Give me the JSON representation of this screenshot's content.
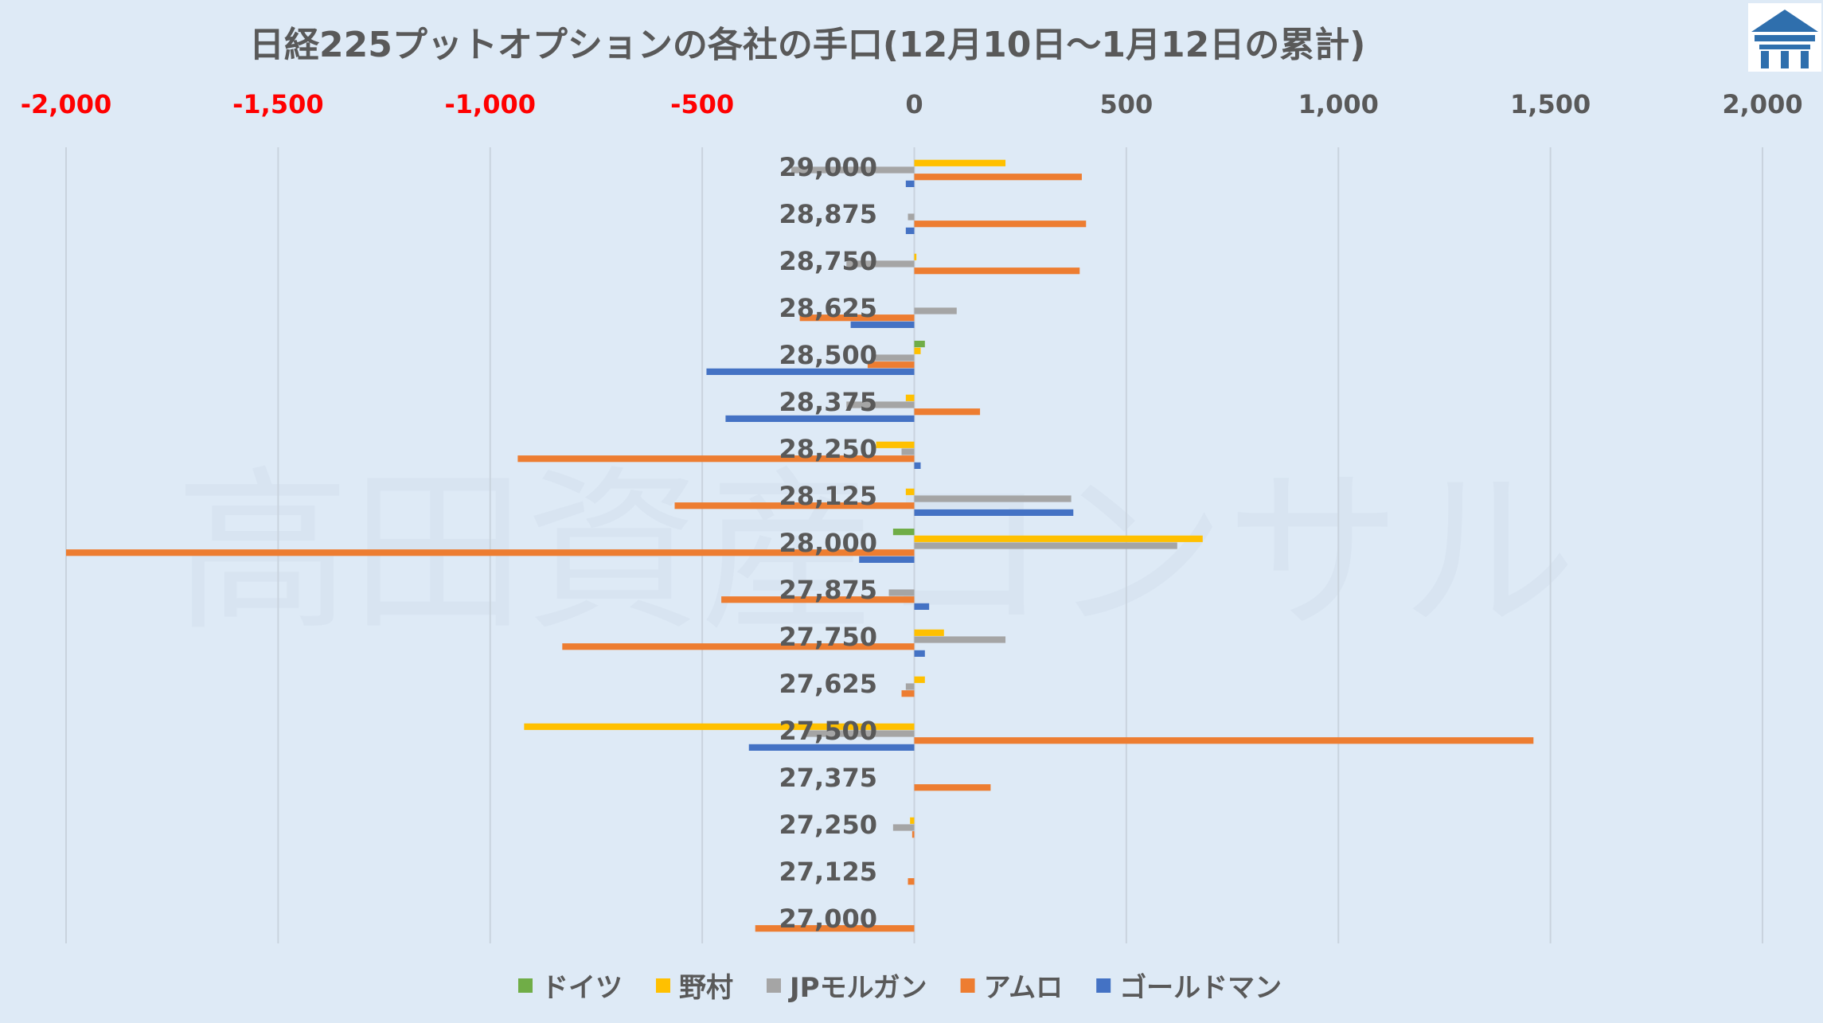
{
  "chart_data": {
    "type": "bar",
    "orientation": "horizontal",
    "title": "日経225プットオプションの各社の手口(12月10日～1月12日の累計)",
    "watermark": "高田資産コンサル",
    "logo": "building-logo",
    "xlim": [
      -2000,
      2000
    ],
    "xticks": [
      -2000,
      -1500,
      -1000,
      -500,
      0,
      500,
      1000,
      1500,
      2000
    ],
    "xtick_labels": [
      "-2,000",
      "-1,500",
      "-1,000",
      "-500",
      "0",
      "500",
      "1,000",
      "1,500",
      "2,000"
    ],
    "negative_tick_color": "#ff0000",
    "positive_tick_color": "#595959",
    "grid": true,
    "legend_position": "bottom",
    "categories": [
      "29,000",
      "28,875",
      "28,750",
      "28,625",
      "28,500",
      "28,375",
      "28,250",
      "28,125",
      "28,000",
      "27,875",
      "27,750",
      "27,625",
      "27,500",
      "27,375",
      "27,250",
      "27,125",
      "27,000"
    ],
    "series": [
      {
        "name": "ドイツ",
        "color": "#70ad47",
        "values": [
          0,
          0,
          0,
          0,
          25,
          0,
          0,
          0,
          -50,
          0,
          0,
          0,
          0,
          0,
          0,
          0,
          0
        ]
      },
      {
        "name": "野村",
        "color": "#ffc000",
        "values": [
          215,
          0,
          5,
          0,
          15,
          -20,
          -90,
          -20,
          680,
          0,
          70,
          25,
          -920,
          0,
          -10,
          0,
          0
        ]
      },
      {
        "name": "JPモルガン",
        "color": "#a5a5a5",
        "values": [
          -290,
          -15,
          -160,
          100,
          -100,
          -160,
          -30,
          370,
          620,
          -60,
          215,
          -20,
          -260,
          0,
          -50,
          0,
          0
        ]
      },
      {
        "name": "アムロ",
        "color": "#ed7d31",
        "values": [
          395,
          405,
          390,
          -270,
          -110,
          155,
          -935,
          -565,
          -2000,
          -455,
          -830,
          -30,
          1460,
          180,
          -5,
          -15,
          -375
        ]
      },
      {
        "name": "ゴールドマン",
        "color": "#4472c4",
        "values": [
          -20,
          -20,
          0,
          -150,
          -490,
          -445,
          15,
          375,
          -130,
          35,
          25,
          0,
          -390,
          0,
          0,
          0,
          0
        ]
      }
    ]
  }
}
